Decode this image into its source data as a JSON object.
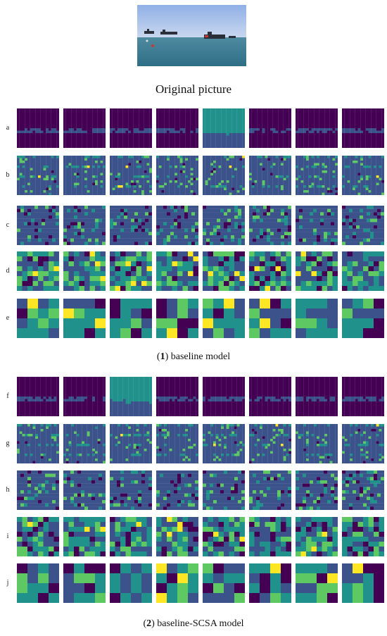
{
  "figure": {
    "original_caption": "Original picture",
    "panel1": {
      "num": "1",
      "text": "baseline model"
    },
    "panel2": {
      "num": "2",
      "text": "baseline-SCSA model"
    },
    "rows": [
      {
        "label": "a",
        "kind": "smooth",
        "res": 16
      },
      {
        "label": "b",
        "kind": "stripes",
        "res": 16
      },
      {
        "label": "c",
        "kind": "blobs",
        "res": 12
      },
      {
        "label": "d",
        "kind": "grid",
        "res": 8
      },
      {
        "label": "e",
        "kind": "grid",
        "res": 4
      },
      {
        "label": "f",
        "kind": "smooth",
        "res": 16
      },
      {
        "label": "g",
        "kind": "stripes",
        "res": 16
      },
      {
        "label": "h",
        "kind": "blobs",
        "res": 12
      },
      {
        "label": "i",
        "kind": "grid",
        "res": 8
      },
      {
        "label": "j",
        "kind": "grid",
        "res": 4
      }
    ],
    "colormap": [
      "#440154",
      "#3b528b",
      "#21918c",
      "#5ec962",
      "#fde725"
    ]
  }
}
